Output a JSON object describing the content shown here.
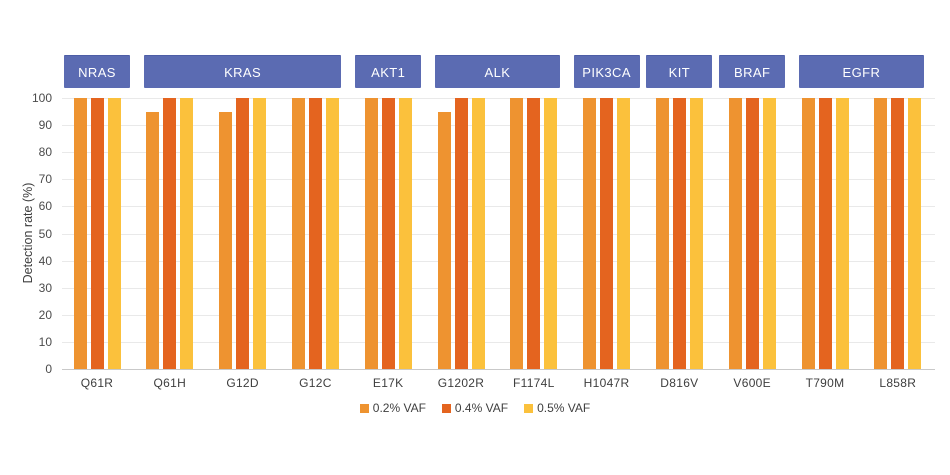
{
  "chart_data": {
    "type": "bar",
    "title": "",
    "xlabel": "",
    "ylabel": "Detection rate (%)",
    "ylim": [
      0,
      100
    ],
    "yticks": [
      0,
      10,
      20,
      30,
      40,
      50,
      60,
      70,
      80,
      90,
      100
    ],
    "grid": true,
    "legend_position": "bottom",
    "categories": [
      "Q61R",
      "Q61H",
      "G12D",
      "G12C",
      "E17K",
      "G1202R",
      "F1174L",
      "H1047R",
      "D816V",
      "V600E",
      "T790M",
      "L858R"
    ],
    "gene_groups": [
      {
        "label": "NRAS",
        "span": [
          0,
          0
        ]
      },
      {
        "label": "KRAS",
        "span": [
          1,
          3
        ]
      },
      {
        "label": "AKT1",
        "span": [
          4,
          4
        ]
      },
      {
        "label": "ALK",
        "span": [
          5,
          6
        ]
      },
      {
        "label": "PIK3CA",
        "span": [
          7,
          7
        ]
      },
      {
        "label": "KIT",
        "span": [
          8,
          8
        ]
      },
      {
        "label": "BRAF",
        "span": [
          9,
          9
        ]
      },
      {
        "label": "EGFR",
        "span": [
          10,
          11
        ]
      }
    ],
    "series": [
      {
        "name": "0.2% VAF",
        "color": "#EE9330",
        "values": [
          100,
          95,
          95,
          100,
          100,
          95,
          100,
          100,
          100,
          100,
          100,
          100
        ]
      },
      {
        "name": "0.4% VAF",
        "color": "#E4641F",
        "values": [
          100,
          100,
          100,
          100,
          100,
          100,
          100,
          100,
          100,
          100,
          100,
          100
        ]
      },
      {
        "name": "0.5% VAF",
        "color": "#FBC13C",
        "values": [
          100,
          100,
          100,
          100,
          100,
          100,
          100,
          100,
          100,
          100,
          100,
          100
        ]
      }
    ]
  },
  "colors": {
    "band_background": "#5B6BB2",
    "band_text": "#FFFFFF",
    "gridline": "#E9E9E9",
    "axis_line": "#C9C9C9",
    "tick_text": "#4B4B4B"
  }
}
